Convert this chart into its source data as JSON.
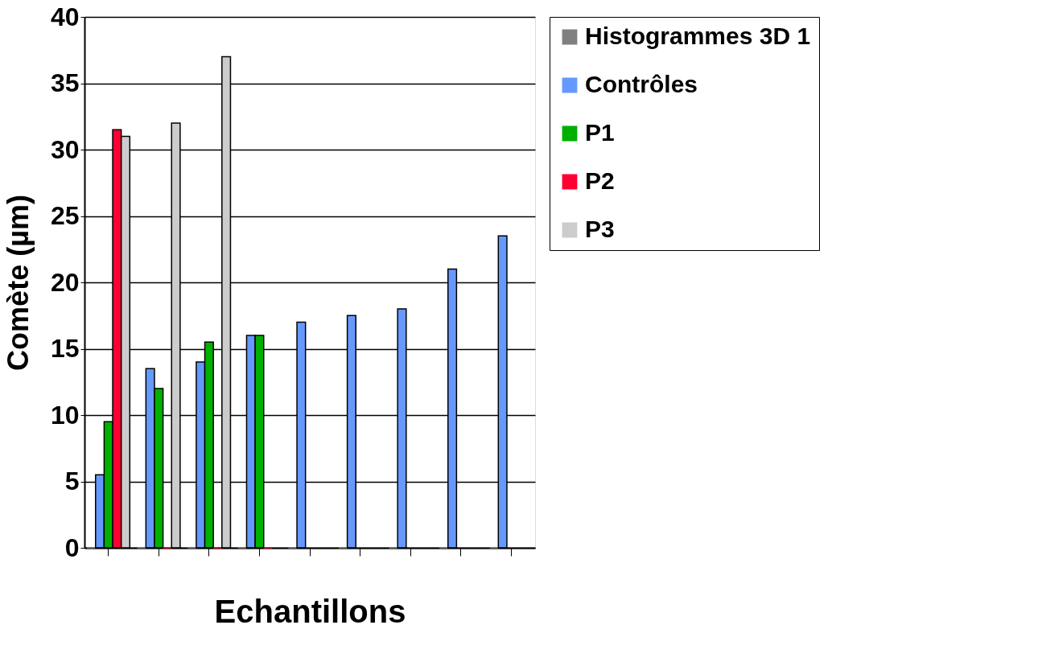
{
  "chart_data": {
    "type": "bar",
    "xlabel": "Echantillons",
    "ylabel": "Comète (µm)",
    "categories": [
      null,
      null,
      null,
      null,
      null,
      null,
      null,
      null,
      null
    ],
    "series": [
      {
        "name": "Histogrammes 3D 1",
        "color": "#808080",
        "values": [
          0,
          0,
          0,
          0,
          0,
          0,
          0,
          0,
          0
        ]
      },
      {
        "name": "Contrôles",
        "color": "#6699ff",
        "values": [
          5.5,
          13.5,
          14,
          16,
          17,
          17.5,
          18,
          21,
          23.5
        ]
      },
      {
        "name": "P1",
        "color": "#00b000",
        "values": [
          9.5,
          12,
          15.5,
          16,
          null,
          null,
          null,
          null,
          null
        ]
      },
      {
        "name": "P2",
        "color": "#ff0033",
        "values": [
          31.5,
          0,
          0,
          0,
          null,
          null,
          null,
          null,
          null
        ]
      },
      {
        "name": "P3",
        "color": "#cccccc",
        "values": [
          31,
          32,
          37,
          null,
          null,
          null,
          null,
          null,
          null
        ]
      }
    ],
    "ylim": [
      0,
      40
    ],
    "yticks": [
      0,
      5,
      10,
      15,
      20,
      25,
      30,
      35,
      40
    ],
    "grid": "y",
    "legend": "right"
  }
}
